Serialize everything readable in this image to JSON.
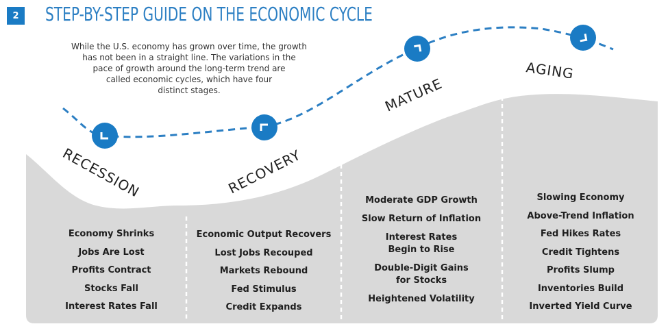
{
  "header": {
    "badge": "2",
    "title": "STEP-BY-STEP GUIDE ON THE ECONOMIC CYCLE"
  },
  "intro_lines": [
    "While the U.S. economy has grown over time, the growth",
    "has not been in a straight line. The variations in the",
    "pace of growth around the long-term trend are",
    "called economic cycles, which have four",
    "distinct stages."
  ],
  "stages": [
    {
      "name": "RECESSION",
      "icon": "corner-bottom-left-icon",
      "items": [
        "Economy Shrinks",
        "Jobs Are Lost",
        "Profits Contract",
        "Stocks Fall",
        "Interest Rates Fall"
      ]
    },
    {
      "name": "RECOVERY",
      "icon": "corner-top-left-icon",
      "items": [
        "Economic Output Recovers",
        "Lost Jobs Recouped",
        "Markets Rebound",
        "Fed Stimulus",
        "Credit Expands"
      ]
    },
    {
      "name": "MATURE",
      "icon": "corner-top-right-icon",
      "items": [
        "Moderate GDP Growth",
        "Slow Return of Inflation",
        "Interest Rates Begin to Rise",
        "Double-Digit Gains for Stocks",
        "Heightened Volatility"
      ]
    },
    {
      "name": "AGING",
      "icon": "corner-bottom-right-icon",
      "items": [
        "Slowing Economy",
        "Above-Trend Inflation",
        "Fed Hikes Rates",
        "Credit Tightens",
        "Profits Slump",
        "Inventories Build",
        "Inverted Yield Curve"
      ]
    }
  ],
  "colors": {
    "accent": "#2c7fc3",
    "icon_fill": "#1a7bc4",
    "panel": "#d9d9d9",
    "divider": "#ffffff"
  }
}
